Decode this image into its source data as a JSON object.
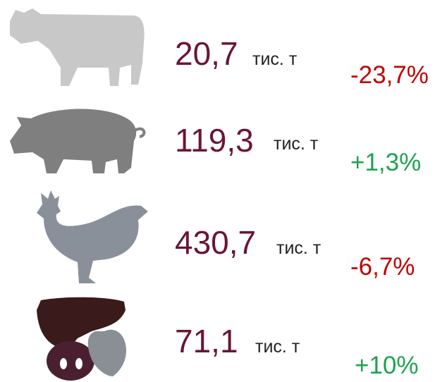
{
  "rows": [
    {
      "value": "20,7",
      "unit": "тис. т",
      "change": "-23,7%",
      "change_color": "#c00000"
    },
    {
      "value": "119,3",
      "unit": "тис. т",
      "change": "+1,3%",
      "change_color": "#1ea24f"
    },
    {
      "value": "430,7",
      "unit": "тис. т",
      "change": "-6,7%",
      "change_color": "#c00000"
    },
    {
      "value": "71,1",
      "unit": "тис. т",
      "change": "+10%",
      "change_color": "#1ea24f"
    }
  ]
}
